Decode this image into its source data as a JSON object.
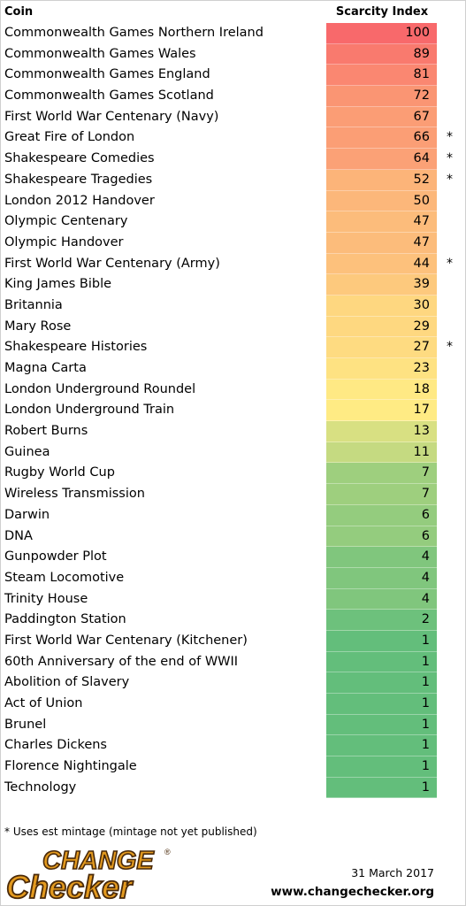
{
  "header": {
    "coin": "Coin",
    "index": "Scarcity Index"
  },
  "rows": [
    {
      "coin": "Commonwealth Games Northern Ireland",
      "index": "100",
      "star": ""
    },
    {
      "coin": "Commonwealth Games Wales",
      "index": "89",
      "star": ""
    },
    {
      "coin": "Commonwealth Games England",
      "index": "81",
      "star": ""
    },
    {
      "coin": "Commonwealth Games Scotland",
      "index": "72",
      "star": ""
    },
    {
      "coin": "First World War Centenary (Navy)",
      "index": "67",
      "star": ""
    },
    {
      "coin": "Great Fire of London",
      "index": "66",
      "star": "*"
    },
    {
      "coin": "Shakespeare Comedies",
      "index": "64",
      "star": "*"
    },
    {
      "coin": "Shakespeare Tragedies",
      "index": "52",
      "star": "*"
    },
    {
      "coin": "London 2012 Handover",
      "index": "50",
      "star": ""
    },
    {
      "coin": "Olympic Centenary",
      "index": "47",
      "star": ""
    },
    {
      "coin": "Olympic Handover",
      "index": "47",
      "star": ""
    },
    {
      "coin": "First World War Centenary (Army)",
      "index": "44",
      "star": "*"
    },
    {
      "coin": "King James Bible",
      "index": "39",
      "star": ""
    },
    {
      "coin": "Britannia",
      "index": "30",
      "star": ""
    },
    {
      "coin": "Mary Rose",
      "index": "29",
      "star": ""
    },
    {
      "coin": "Shakespeare Histories",
      "index": "27",
      "star": "*"
    },
    {
      "coin": "Magna Carta",
      "index": "23",
      "star": ""
    },
    {
      "coin": "London Underground Roundel",
      "index": "18",
      "star": ""
    },
    {
      "coin": "London Underground Train",
      "index": "17",
      "star": ""
    },
    {
      "coin": "Robert Burns",
      "index": "13",
      "star": ""
    },
    {
      "coin": "Guinea",
      "index": "11",
      "star": ""
    },
    {
      "coin": "Rugby World Cup",
      "index": "7",
      "star": ""
    },
    {
      "coin": "Wireless Transmission",
      "index": "7",
      "star": ""
    },
    {
      "coin": "Darwin",
      "index": "6",
      "star": ""
    },
    {
      "coin": "DNA",
      "index": "6",
      "star": ""
    },
    {
      "coin": "Gunpowder Plot",
      "index": "4",
      "star": ""
    },
    {
      "coin": "Steam Locomotive",
      "index": "4",
      "star": ""
    },
    {
      "coin": "Trinity House",
      "index": "4",
      "star": ""
    },
    {
      "coin": "Paddington Station",
      "index": "2",
      "star": ""
    },
    {
      "coin": "First World War Centenary (Kitchener)",
      "index": "1",
      "star": ""
    },
    {
      "coin": "60th Anniversary of the end of WWII",
      "index": "1",
      "star": ""
    },
    {
      "coin": "Abolition of Slavery",
      "index": "1",
      "star": ""
    },
    {
      "coin": "Act of Union",
      "index": "1",
      "star": ""
    },
    {
      "coin": "Brunel",
      "index": "1",
      "star": ""
    },
    {
      "coin": "Charles Dickens",
      "index": "1",
      "star": ""
    },
    {
      "coin": "Florence Nightingale",
      "index": "1",
      "star": ""
    },
    {
      "coin": "Technology",
      "index": "1",
      "star": ""
    }
  ],
  "colors": {
    "high": "#f8696b",
    "mid": "#ffeb84",
    "low": "#63be7b"
  },
  "footnote": "* Uses est mintage (mintage not yet published)",
  "logo": {
    "line1": "CHANGE",
    "line2": "Checker",
    "mark": "®"
  },
  "date": "31 March 2017",
  "url": "www.changechecker.org"
}
